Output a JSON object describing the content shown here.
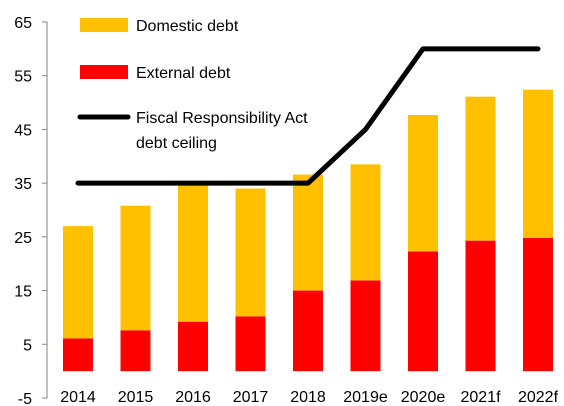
{
  "chart_data": {
    "type": "bar",
    "stacked": true,
    "categories": [
      "2014",
      "2015",
      "2016",
      "2017",
      "2018",
      "2019e",
      "2020e",
      "2021f",
      "2022f"
    ],
    "series": [
      {
        "name": "External debt",
        "kind": "bar",
        "color": "#ff0000",
        "values": [
          6.1,
          7.6,
          9.2,
          10.2,
          15.0,
          16.9,
          22.3,
          24.3,
          24.8
        ]
      },
      {
        "name": "Domestic debt",
        "kind": "bar",
        "color": "#ffc000",
        "values": [
          20.9,
          23.2,
          25.8,
          23.8,
          21.6,
          21.6,
          25.4,
          26.8,
          27.6
        ]
      },
      {
        "name_lines": [
          "Fiscal Responsibility Act",
          "debt ceiling"
        ],
        "kind": "line",
        "color": "#000000",
        "values": [
          35,
          35,
          35,
          35,
          35,
          45,
          60,
          60,
          60
        ]
      }
    ],
    "y_ticks": [
      "65",
      "55",
      "45",
      "35",
      "25",
      "15",
      "5",
      "-5"
    ],
    "ylim": [
      -5,
      65
    ],
    "legend_position": "top-left, inside plot",
    "grid": false
  }
}
